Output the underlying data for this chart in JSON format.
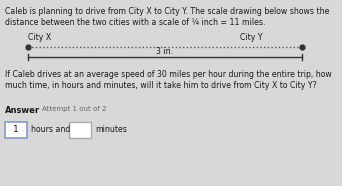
{
  "title_line1": "Caleb is planning to drive from City X to City Y. The scale drawing below shows the",
  "title_line2": "distance between the two cities with a scale of ¼ inch = 11 miles.",
  "city_x_label": "City X",
  "city_y_label": "City Y",
  "scale_label": "3 in.",
  "question_line1": "If Caleb drives at an average speed of 30 miles per hour during the entire trip, how",
  "question_line2": "much time, in hours and minutes, will it take him to drive from City X to City Y?",
  "answer_label": "Answer",
  "attempt_label": "Attempt 1 out of 2",
  "hours_value": "1",
  "bg_color": "#d8d8d8",
  "text_color": "#1a1a1a",
  "dot_line_color": "#555555",
  "scale_line_color": "#333333",
  "box1_edge_color": "#8899cc",
  "box2_edge_color": "#aaaaaa"
}
